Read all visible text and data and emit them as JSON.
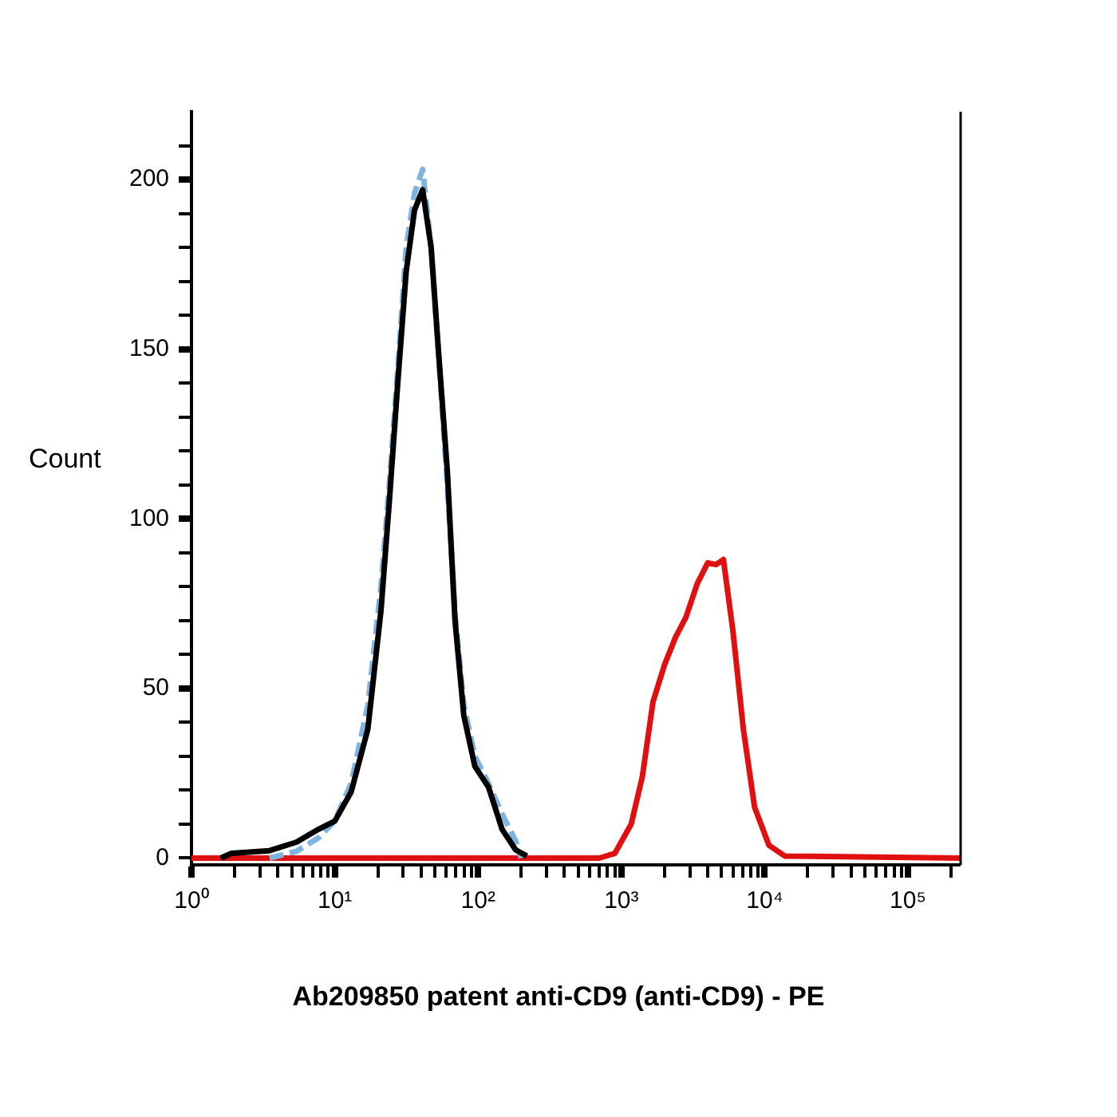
{
  "chart_data": {
    "type": "line",
    "xlabel": "Ab209850 patent anti-CD9 (anti-CD9) - PE",
    "ylabel": "Count",
    "log": "x",
    "xlim": [
      1,
      233000
    ],
    "xticks": [
      {
        "value": 1,
        "label": "10⁰"
      },
      {
        "value": 2,
        "label": null
      },
      {
        "value": 3,
        "label": null
      },
      {
        "value": 4,
        "label": null
      },
      {
        "value": 5,
        "label": null
      },
      {
        "value": 6,
        "label": null
      },
      {
        "value": 7,
        "label": null
      },
      {
        "value": 8,
        "label": null
      },
      {
        "value": 9,
        "label": null
      },
      {
        "value": 10,
        "label": "10¹"
      },
      {
        "value": 20,
        "label": null
      },
      {
        "value": 30,
        "label": null
      },
      {
        "value": 40,
        "label": null
      },
      {
        "value": 50,
        "label": null
      },
      {
        "value": 60,
        "label": null
      },
      {
        "value": 70,
        "label": null
      },
      {
        "value": 80,
        "label": null
      },
      {
        "value": 90,
        "label": null
      },
      {
        "value": 100,
        "label": "10²"
      },
      {
        "value": 200,
        "label": null
      },
      {
        "value": 300,
        "label": null
      },
      {
        "value": 400,
        "label": null
      },
      {
        "value": 500,
        "label": null
      },
      {
        "value": 600,
        "label": null
      },
      {
        "value": 700,
        "label": null
      },
      {
        "value": 800,
        "label": null
      },
      {
        "value": 900,
        "label": null
      },
      {
        "value": 1000,
        "label": "10³"
      },
      {
        "value": 2000,
        "label": null
      },
      {
        "value": 3000,
        "label": null
      },
      {
        "value": 4000,
        "label": null
      },
      {
        "value": 5000,
        "label": null
      },
      {
        "value": 6000,
        "label": null
      },
      {
        "value": 7000,
        "label": null
      },
      {
        "value": 8000,
        "label": null
      },
      {
        "value": 9000,
        "label": null
      },
      {
        "value": 10000,
        "label": "10⁴"
      },
      {
        "value": 20000,
        "label": null
      },
      {
        "value": 30000,
        "label": null
      },
      {
        "value": 40000,
        "label": null
      },
      {
        "value": 50000,
        "label": null
      },
      {
        "value": 60000,
        "label": null
      },
      {
        "value": 70000,
        "label": null
      },
      {
        "value": 80000,
        "label": null
      },
      {
        "value": 90000,
        "label": null
      },
      {
        "value": 100000,
        "label": "10⁵"
      },
      {
        "value": 200000,
        "label": null
      }
    ],
    "ylim": [
      -2,
      220
    ],
    "yticks": [
      0,
      {
        "value": 10,
        "label": null
      },
      {
        "value": 20,
        "label": null
      },
      {
        "value": 30,
        "label": null
      },
      {
        "value": 40,
        "label": null
      },
      50,
      {
        "value": 60,
        "label": null
      },
      {
        "value": 70,
        "label": null
      },
      {
        "value": 80,
        "label": null
      },
      {
        "value": 90,
        "label": null
      },
      100,
      {
        "value": 110,
        "label": null
      },
      {
        "value": 120,
        "label": null
      },
      {
        "value": 130,
        "label": null
      },
      {
        "value": 140,
        "label": null
      },
      150,
      {
        "value": 160,
        "label": null
      },
      {
        "value": 170,
        "label": null
      },
      {
        "value": 180,
        "label": null
      },
      {
        "value": 190,
        "label": null
      },
      200,
      {
        "value": 210,
        "label": null
      }
    ],
    "grid": false,
    "legend": false,
    "series": [
      {
        "color": "#000000",
        "line_style": "solid",
        "x": [
          1.6,
          1.9,
          3.5,
          5.4,
          7.7,
          10,
          13,
          17,
          21,
          24,
          27.6,
          31.5,
          36,
          41,
          47,
          53,
          61,
          69,
          79.5,
          95,
          118,
          147,
          183,
          219
        ],
        "values": [
          0,
          1.4,
          2.2,
          4.7,
          8.5,
          10.9,
          19.5,
          38,
          73,
          105,
          141,
          173,
          191,
          197,
          180,
          149,
          114,
          70,
          42,
          27,
          21,
          8.5,
          2.4,
          0.6
        ]
      },
      {
        "color": "#7fb4e0",
        "line_style": "dashed",
        "x": [
          3.5,
          5.4,
          7.7,
          10,
          13,
          17,
          21,
          24,
          27.6,
          31.5,
          36,
          41,
          47,
          53,
          61,
          69,
          79.5,
          95,
          118,
          147,
          183,
          200
        ],
        "values": [
          0,
          2,
          6,
          11,
          22,
          45,
          80,
          110,
          145,
          180,
          196,
          203,
          180,
          148,
          110,
          72,
          45,
          30,
          22,
          13,
          5,
          0
        ]
      },
      {
        "color": "#e01010",
        "line_style": "solid",
        "x": [
          1,
          700,
          900,
          1170,
          1400,
          1660,
          2000,
          2380,
          2820,
          3390,
          4000,
          4570,
          5150,
          6000,
          7100,
          8500,
          10700,
          13800,
          233000
        ],
        "values": [
          0,
          0,
          1.4,
          10,
          24,
          46,
          57,
          65,
          71,
          81,
          87,
          86.5,
          88,
          67,
          38,
          15,
          3.8,
          0.6,
          0
        ]
      }
    ]
  }
}
